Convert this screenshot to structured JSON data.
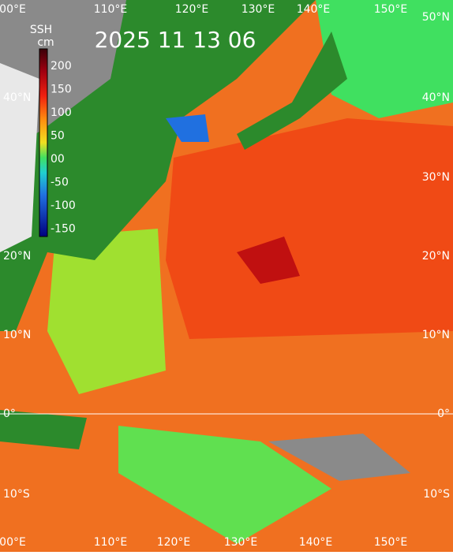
{
  "title": "2025 11 13 06",
  "colorbar": {
    "title": "SSH",
    "unit": "cm",
    "ticks": [
      "200",
      "150",
      "100",
      "50",
      "00",
      "-50",
      "-100",
      "-150"
    ]
  },
  "lon_labels_top": [
    "00°E",
    "110°E",
    "120°E",
    "130°E",
    "140°E",
    "150°E"
  ],
  "lon_labels_bottom": [
    "00°E",
    "110°E",
    "120°E",
    "130°E",
    "140°E",
    "150°E"
  ],
  "lat_labels_left": [
    "40°N",
    "20°N",
    "10°N",
    "0°",
    "10°S"
  ],
  "lat_labels_right": [
    "50°N",
    "40°N",
    "30°N",
    "20°N",
    "10°N",
    "0°",
    "10°S"
  ]
}
